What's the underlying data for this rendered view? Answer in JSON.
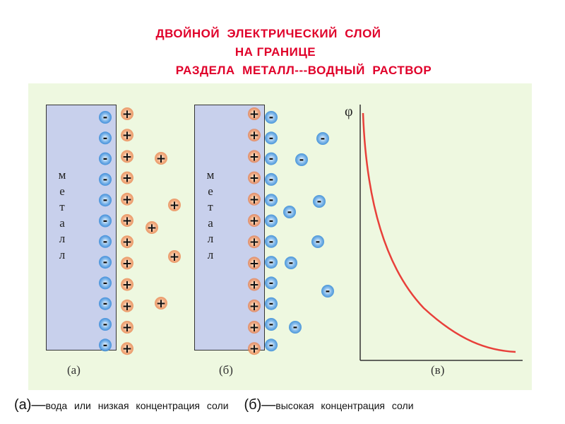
{
  "title": {
    "line1": "ДВОЙНОЙ  ЭЛЕКТРИЧЕСКИЙ  СЛОЙ",
    "line2": "НА ГРАНИЦЕ",
    "line3": "РАЗДЕЛА  МЕТАЛЛ---ВОДНЫЙ  РАСТВОР"
  },
  "metal_letters": [
    "м",
    "е",
    "т",
    "а",
    "л",
    "л"
  ],
  "panels": {
    "a": {
      "label": "(а)"
    },
    "b": {
      "label": "(б)"
    },
    "v": {
      "label": "(в)"
    }
  },
  "graph": {
    "y_axis_label": "φ"
  },
  "ions": {
    "minus": "-",
    "plus": "+"
  },
  "colors": {
    "title": "#e0002a",
    "panel_bg": "#eef8e0",
    "metal": "#c8d0ec",
    "anion": "#2f86d8",
    "cation": "#e8743a",
    "curve": "#e8403a"
  },
  "caption": {
    "a_mark": "(а)—",
    "a_text": "вода  или  низкая  концентрация  соли",
    "b_mark": "(б)—",
    "b_text": "высокая  концентрация  соли"
  }
}
